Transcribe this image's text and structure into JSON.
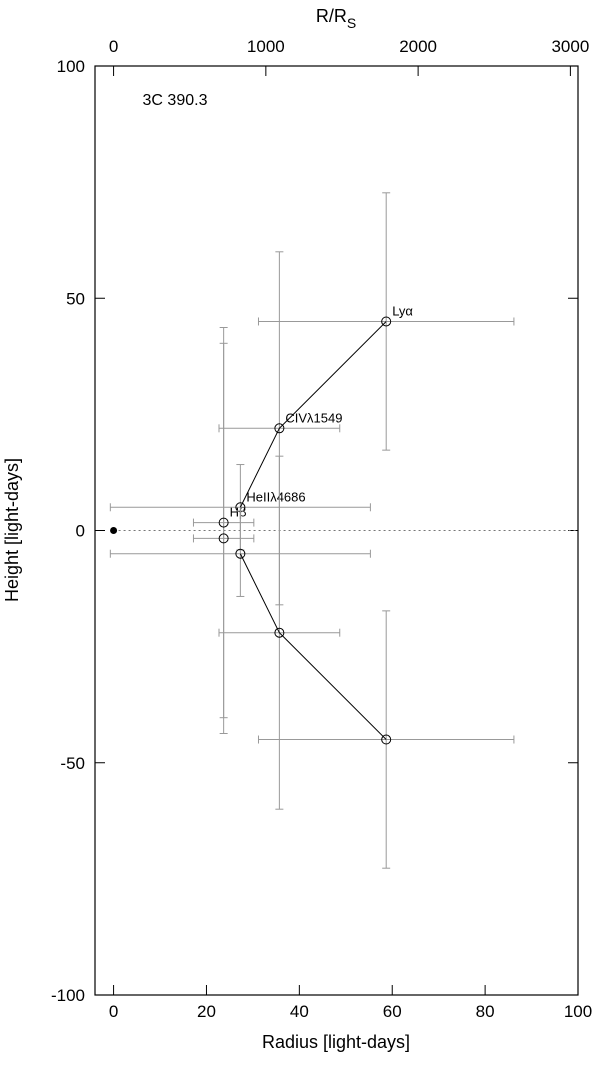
{
  "chart_data": {
    "type": "scatter",
    "annotation": "3C 390.3",
    "xlabel": "Radius  [light-days]",
    "ylabel": "Height  [light-days]",
    "x2label_main": "R/R",
    "x2label_sub": "S",
    "xlim": [
      -4,
      100
    ],
    "xticks": [
      0,
      20,
      40,
      60,
      80,
      100
    ],
    "x2lim": [
      -122,
      3050
    ],
    "x2ticks": [
      0,
      1000,
      2000,
      3000
    ],
    "ylim": [
      -100,
      100
    ],
    "yticks": [
      -100,
      -50,
      0,
      50,
      100
    ],
    "zero_line": true,
    "marker": {
      "x": 0,
      "y": 0
    },
    "series": [
      {
        "x": [
          23.7,
          23.7
        ],
        "y": [
          1.7,
          -1.7
        ],
        "xerr": [
          6.5,
          6.5
        ],
        "yerr": [
          42,
          42
        ],
        "labels": [
          "Hβ",
          null
        ],
        "connect": false
      },
      {
        "x": [
          27.3,
          35.7,
          58.7
        ],
        "y": [
          5,
          22,
          45
        ],
        "xerr": [
          28,
          13,
          27.5
        ],
        "yerr": [
          9.2,
          38,
          27.7
        ],
        "labels": [
          "HeIIλ4686",
          "CIVλ1549",
          "Lyα"
        ],
        "connect": true
      },
      {
        "x": [
          27.3,
          35.7,
          58.7
        ],
        "y": [
          -5,
          -22,
          -45
        ],
        "xerr": [
          28,
          13,
          27.5
        ],
        "yerr": [
          9.2,
          38,
          27.7
        ],
        "connect": true
      }
    ]
  }
}
